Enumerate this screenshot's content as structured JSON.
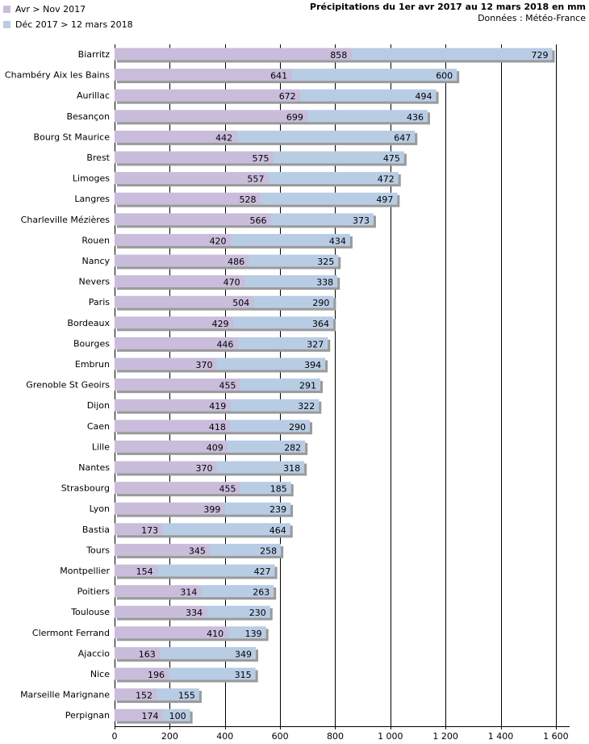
{
  "legend": [
    {
      "label": "Avr > Nov 2017",
      "color": "#c9bddb"
    },
    {
      "label": "Déc 2017 > 12 mars 2018",
      "color": "#b8cce4"
    }
  ],
  "header": {
    "title": "Précipitations du 1er avr 2017 au 12 mars 2018 en mm",
    "source": "Données : Météo-France"
  },
  "chart_data": {
    "type": "bar",
    "orientation": "horizontal",
    "stacked": true,
    "title": "Précipitations du 1er avr 2017 au 12 mars 2018 en mm",
    "source": "Données : Météo-France",
    "xlabel": "",
    "ylabel": "",
    "xlim": [
      0,
      1650
    ],
    "xticks": [
      0,
      200,
      400,
      600,
      800,
      1000,
      1200,
      1400,
      1600
    ],
    "xtick_labels": [
      "0",
      "200",
      "400",
      "600",
      "800",
      "1 000",
      "1 200",
      "1 400",
      "1 600"
    ],
    "grid": "vertical",
    "legend_position": "top-left",
    "categories": [
      "Biarritz",
      "Chambéry Aix les Bains",
      "Aurillac",
      "Besançon",
      "Bourg St Maurice",
      "Brest",
      "Limoges",
      "Langres",
      "Charleville Mézières",
      "Rouen",
      "Nancy",
      "Nevers",
      "Paris",
      "Bordeaux",
      "Bourges",
      "Embrun",
      "Grenoble St Geoirs",
      "Dijon",
      "Caen",
      "Lille",
      "Nantes",
      "Strasbourg",
      "Lyon",
      "Bastia",
      "Tours",
      "Montpellier",
      "Poitiers",
      "Toulouse",
      "Clermont Ferrand",
      "Ajaccio",
      "Nice",
      "Marseille Marignane",
      "Perpignan"
    ],
    "series": [
      {
        "name": "Avr > Nov 2017",
        "color": "#c9bddb",
        "values": [
          858,
          641,
          672,
          699,
          442,
          575,
          557,
          528,
          566,
          420,
          486,
          470,
          504,
          429,
          446,
          370,
          455,
          419,
          418,
          409,
          370,
          455,
          399,
          173,
          345,
          154,
          314,
          334,
          410,
          163,
          196,
          152,
          174
        ]
      },
      {
        "name": "Déc 2017 > 12 mars 2018",
        "color": "#b8cce4",
        "values": [
          729,
          600,
          494,
          436,
          647,
          475,
          472,
          497,
          373,
          434,
          325,
          338,
          290,
          364,
          327,
          394,
          291,
          322,
          290,
          282,
          318,
          185,
          239,
          464,
          258,
          427,
          263,
          230,
          139,
          349,
          315,
          155,
          100
        ]
      }
    ]
  }
}
